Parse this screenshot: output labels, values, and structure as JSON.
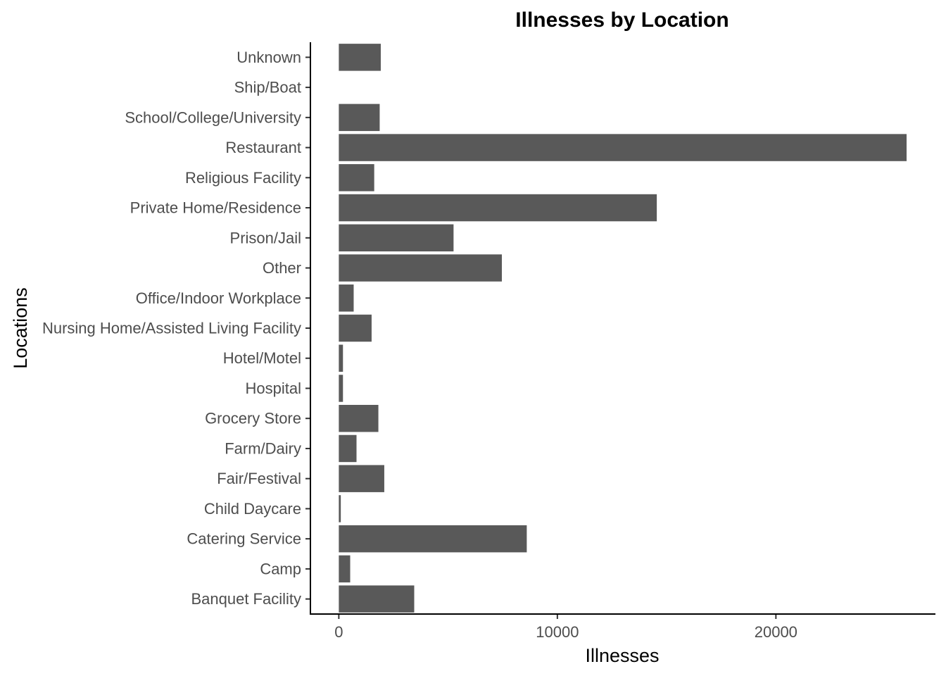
{
  "chart_data": {
    "type": "bar",
    "orientation": "horizontal",
    "title": "Illnesses by Location",
    "xlabel": "Illnesses",
    "ylabel": "Locations",
    "categories": [
      "Banquet Facility",
      "Camp",
      "Catering Service",
      "Child Daycare",
      "Fair/Festival",
      "Farm/Dairy",
      "Grocery Store",
      "Hospital",
      "Hotel/Motel",
      "Nursing Home/Assisted Living Facility",
      "Office/Indoor Workplace",
      "Other",
      "Prison/Jail",
      "Private Home/Residence",
      "Religious Facility",
      "Restaurant",
      "School/College/University",
      "Ship/Boat",
      "Unknown"
    ],
    "values": [
      3450,
      520,
      8600,
      90,
      2080,
      810,
      1810,
      190,
      190,
      1500,
      680,
      7460,
      5250,
      14550,
      1620,
      25980,
      1870,
      0,
      1920
    ],
    "xlim": [
      -1300,
      27300
    ],
    "xticks": [
      0,
      10000,
      20000
    ],
    "xtick_labels": [
      "0",
      "10000",
      "20000"
    ],
    "grid": false,
    "bar_color": "#595959"
  }
}
